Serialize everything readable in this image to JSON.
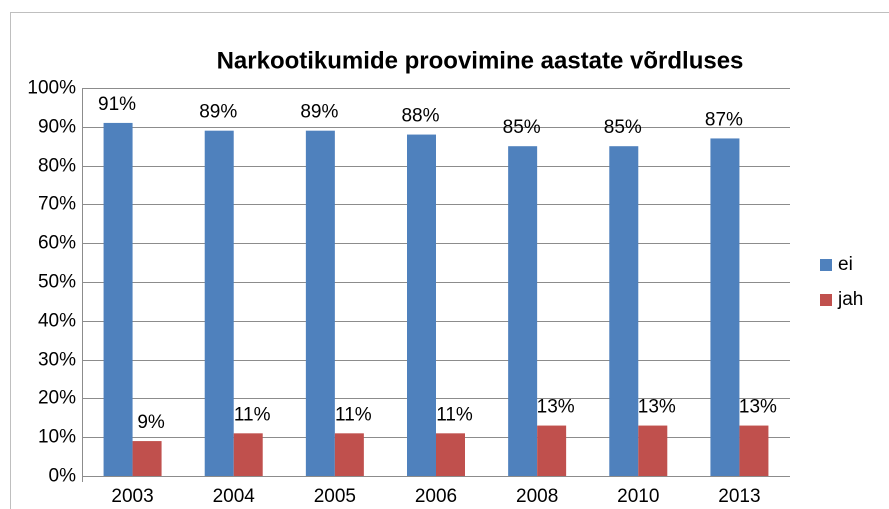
{
  "chart_data": {
    "type": "bar",
    "title": "Narkootikumide proovimine aastate võrdluses",
    "categories": [
      "2003",
      "2004",
      "2005",
      "2006",
      "2008",
      "2010",
      "2013"
    ],
    "series": [
      {
        "name": "ei",
        "color": "#4f81bd",
        "values": [
          91,
          89,
          89,
          88,
          85,
          85,
          87
        ],
        "value_labels": [
          "91%",
          "89%",
          "89%",
          "88%",
          "85%",
          "85%",
          "87%"
        ]
      },
      {
        "name": "jah",
        "color": "#c0504d",
        "values": [
          9,
          11,
          11,
          11,
          13,
          13,
          13
        ],
        "value_labels": [
          "9%",
          "11%",
          "11%",
          "11%",
          "13%",
          "13%",
          "13%"
        ]
      }
    ],
    "ylim": [
      0,
      100
    ],
    "yticks": [
      {
        "value": 0,
        "label": "0%"
      },
      {
        "value": 10,
        "label": "10%"
      },
      {
        "value": 20,
        "label": "20%"
      },
      {
        "value": 30,
        "label": "30%"
      },
      {
        "value": 40,
        "label": "40%"
      },
      {
        "value": 50,
        "label": "50%"
      },
      {
        "value": 60,
        "label": "60%"
      },
      {
        "value": 70,
        "label": "70%"
      },
      {
        "value": 80,
        "label": "80%"
      },
      {
        "value": 90,
        "label": "90%"
      },
      {
        "value": 100,
        "label": "100%"
      }
    ],
    "grid": true,
    "legend": "right"
  }
}
